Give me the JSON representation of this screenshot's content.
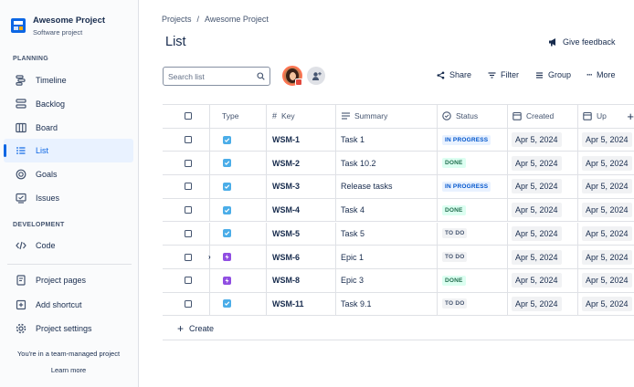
{
  "sidebar": {
    "project_name": "Awesome Project",
    "project_type": "Software project",
    "planning_title": "PLANNING",
    "planning_items": [
      {
        "label": "Timeline",
        "icon": "timeline-icon"
      },
      {
        "label": "Backlog",
        "icon": "backlog-icon"
      },
      {
        "label": "Board",
        "icon": "board-icon"
      },
      {
        "label": "List",
        "icon": "list-icon",
        "active": true
      },
      {
        "label": "Goals",
        "icon": "goals-icon"
      },
      {
        "label": "Issues",
        "icon": "issues-icon"
      }
    ],
    "development_title": "DEVELOPMENT",
    "development_items": [
      {
        "label": "Code",
        "icon": "code-icon"
      }
    ],
    "footer_items": [
      {
        "label": "Project pages",
        "icon": "pages-icon"
      },
      {
        "label": "Add shortcut",
        "icon": "shortcut-icon"
      },
      {
        "label": "Project settings",
        "icon": "gear-icon"
      }
    ],
    "team_note": "You're in a team-managed project",
    "learn_more": "Learn more"
  },
  "header": {
    "breadcrumb": [
      "Projects",
      "/",
      "Awesome Project"
    ],
    "title": "List",
    "feedback": "Give feedback"
  },
  "toolbar": {
    "search_placeholder": "Search list",
    "share": "Share",
    "filter": "Filter",
    "group": "Group",
    "more": "More"
  },
  "table": {
    "columns": [
      "Type",
      "Key",
      "Summary",
      "Status",
      "Created",
      "Up"
    ],
    "rows": [
      {
        "type": "task",
        "key": "WSM-1",
        "summary": "Task 1",
        "status": "IN PROGRESS",
        "created": "Apr 5, 2024",
        "updated": "Apr 5, 2024"
      },
      {
        "type": "task",
        "key": "WSM-2",
        "summary": "Task 10.2",
        "status": "DONE",
        "created": "Apr 5, 2024",
        "updated": "Apr 5, 2024"
      },
      {
        "type": "task",
        "key": "WSM-3",
        "summary": "Release tasks",
        "status": "IN PROGRESS",
        "created": "Apr 5, 2024",
        "updated": "Apr 5, 2024"
      },
      {
        "type": "task",
        "key": "WSM-4",
        "summary": "Task 4",
        "status": "DONE",
        "created": "Apr 5, 2024",
        "updated": "Apr 5, 2024"
      },
      {
        "type": "task",
        "key": "WSM-5",
        "summary": "Task 5",
        "status": "TO DO",
        "created": "Apr 5, 2024",
        "updated": "Apr 5, 2024"
      },
      {
        "type": "epic",
        "key": "WSM-6",
        "summary": "Epic 1",
        "status": "TO DO",
        "created": "Apr 5, 2024",
        "updated": "Apr 5, 2024",
        "expandable": true
      },
      {
        "type": "epic",
        "key": "WSM-8",
        "summary": "Epic 3",
        "status": "DONE",
        "created": "Apr 5, 2024",
        "updated": "Apr 5, 2024"
      },
      {
        "type": "task",
        "key": "WSM-11",
        "summary": "Task 9.1",
        "status": "TO DO",
        "created": "Apr 5, 2024",
        "updated": "Apr 5, 2024"
      }
    ],
    "create_label": "Create"
  },
  "colors": {
    "accent": "#0c66e4",
    "task": "#4bade8",
    "epic": "#904ee2"
  }
}
